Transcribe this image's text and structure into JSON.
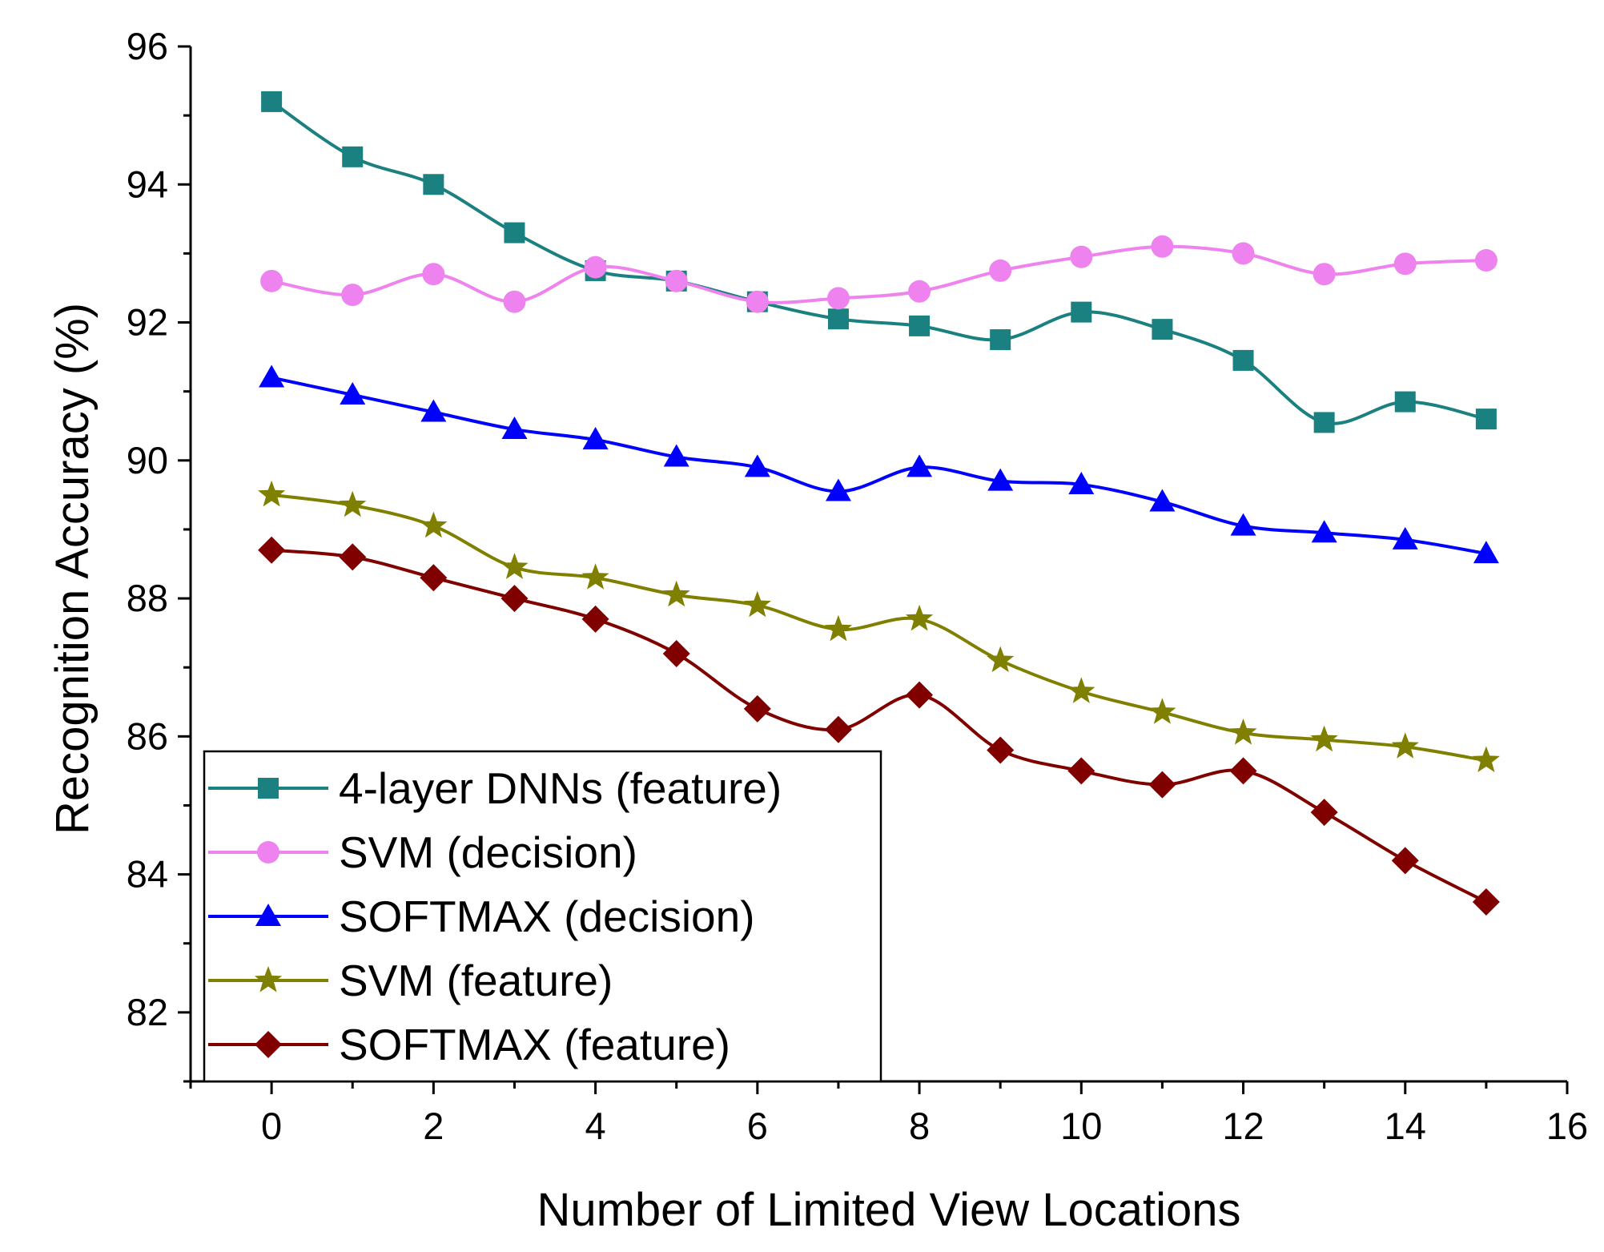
{
  "chart_data": {
    "type": "line",
    "title": "",
    "xlabel": "Number of Limited View Locations",
    "ylabel": "Recognition Accuracy (%)",
    "xlim": [
      -1,
      16
    ],
    "ylim": [
      81,
      96
    ],
    "xticks": [
      0,
      2,
      4,
      6,
      8,
      10,
      12,
      14,
      16
    ],
    "yticks": [
      82,
      84,
      86,
      88,
      90,
      92,
      94,
      96
    ],
    "xtick_labels": [
      "0",
      "2",
      "4",
      "6",
      "8",
      "10",
      "12",
      "14",
      "16"
    ],
    "ytick_labels": [
      "82",
      "84",
      "86",
      "88",
      "90",
      "92",
      "94",
      "96"
    ],
    "legend_position": "bottom-left",
    "x": [
      0,
      1,
      2,
      3,
      4,
      5,
      6,
      7,
      8,
      9,
      10,
      11,
      12,
      13,
      14,
      15
    ],
    "series": [
      {
        "name": "4-layer DNNs (feature)",
        "color": "#1a8080",
        "marker": "square",
        "values": [
          95.2,
          94.4,
          94.0,
          93.3,
          92.75,
          92.6,
          92.3,
          92.05,
          91.95,
          91.75,
          92.15,
          91.9,
          91.45,
          90.55,
          90.85,
          90.6
        ]
      },
      {
        "name": "SVM (decision)",
        "color": "#ee82ee",
        "marker": "circle",
        "values": [
          92.6,
          92.4,
          92.7,
          92.3,
          92.8,
          92.6,
          92.3,
          92.35,
          92.45,
          92.75,
          92.95,
          93.1,
          93.0,
          92.7,
          92.85,
          92.9
        ]
      },
      {
        "name": "SOFTMAX (decision)",
        "color": "#0000ff",
        "marker": "triangle",
        "values": [
          91.2,
          90.95,
          90.7,
          90.45,
          90.3,
          90.05,
          89.9,
          89.55,
          89.9,
          89.7,
          89.65,
          89.4,
          89.05,
          88.95,
          88.85,
          88.65
        ]
      },
      {
        "name": "SVM (feature)",
        "color": "#808000",
        "marker": "star",
        "values": [
          89.5,
          89.35,
          89.05,
          88.45,
          88.3,
          88.05,
          87.9,
          87.55,
          87.7,
          87.1,
          86.65,
          86.35,
          86.05,
          85.95,
          85.85,
          85.65
        ]
      },
      {
        "name": "SOFTMAX (feature)",
        "color": "#800000",
        "marker": "diamond",
        "values": [
          88.7,
          88.6,
          88.3,
          88.0,
          87.7,
          87.2,
          86.4,
          86.1,
          86.6,
          85.8,
          85.5,
          85.3,
          85.5,
          84.9,
          84.2,
          83.6
        ]
      }
    ]
  }
}
